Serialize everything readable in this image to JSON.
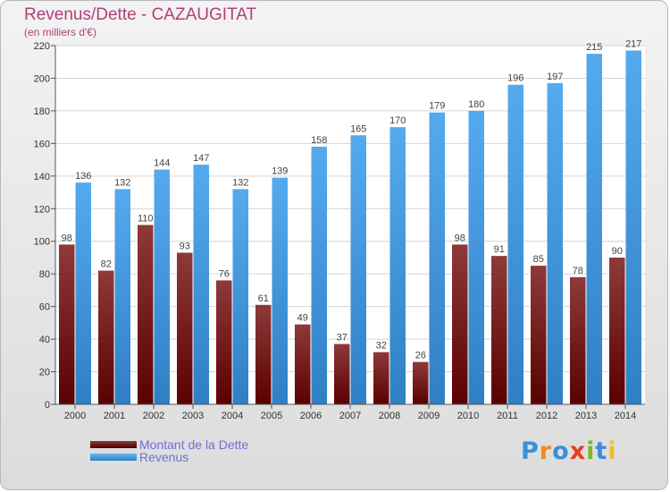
{
  "title": "Revenus/Dette - CAZAUGITAT",
  "subtitle": "(en milliers d'€)",
  "logo_text": "Proxiti",
  "colors": {
    "dette": "#7a1f1f",
    "revenus": "#4499dd",
    "title": "#b13f7a",
    "legend_text": "#6f6fd6"
  },
  "chart_data": {
    "type": "bar",
    "categories": [
      "2000",
      "2001",
      "2002",
      "2003",
      "2004",
      "2005",
      "2006",
      "2007",
      "2008",
      "2009",
      "2010",
      "2011",
      "2012",
      "2013",
      "2014"
    ],
    "series": [
      {
        "name": "Montant de la Dette",
        "values": [
          98,
          82,
          110,
          93,
          76,
          61,
          49,
          37,
          32,
          26,
          98,
          91,
          85,
          78,
          90
        ]
      },
      {
        "name": "Revenus",
        "values": [
          136,
          132,
          144,
          147,
          132,
          139,
          158,
          165,
          170,
          179,
          180,
          196,
          197,
          215,
          217
        ]
      }
    ],
    "ylim": [
      0,
      220
    ],
    "yticks": [
      0,
      20,
      40,
      60,
      80,
      100,
      120,
      140,
      160,
      180,
      200,
      220
    ],
    "grid": true,
    "legend_position": "bottom-left"
  }
}
